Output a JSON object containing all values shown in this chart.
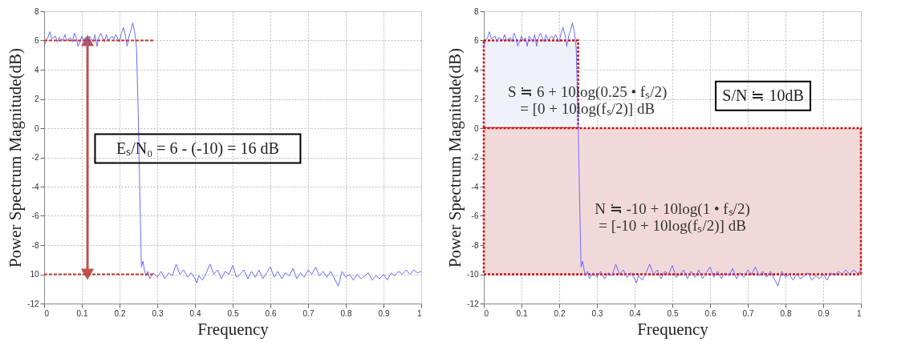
{
  "chart_data": [
    {
      "type": "line",
      "xlabel": "Frequency",
      "ylabel": "Power Spectrum Magnitude(dB)",
      "x": [
        0,
        0.005,
        0.01,
        0.015,
        0.02,
        0.03,
        0.035,
        0.04,
        0.05,
        0.055,
        0.06,
        0.07,
        0.075,
        0.08,
        0.085,
        0.09,
        0.1,
        0.105,
        0.11,
        0.115,
        0.12,
        0.13,
        0.135,
        0.14,
        0.145,
        0.15,
        0.16,
        0.165,
        0.17,
        0.18,
        0.185,
        0.19,
        0.2,
        0.205,
        0.21,
        0.215,
        0.22,
        0.225,
        0.23,
        0.235,
        0.24,
        0.245,
        0.25,
        0.255,
        0.258,
        0.262,
        0.266,
        0.27,
        0.275,
        0.28,
        0.29,
        0.3,
        0.31,
        0.32,
        0.33,
        0.34,
        0.35,
        0.36,
        0.37,
        0.38,
        0.39,
        0.4,
        0.405,
        0.41,
        0.42,
        0.43,
        0.44,
        0.45,
        0.46,
        0.47,
        0.48,
        0.49,
        0.5,
        0.51,
        0.52,
        0.53,
        0.54,
        0.55,
        0.56,
        0.57,
        0.58,
        0.59,
        0.6,
        0.61,
        0.62,
        0.63,
        0.64,
        0.65,
        0.66,
        0.67,
        0.68,
        0.69,
        0.7,
        0.71,
        0.72,
        0.73,
        0.74,
        0.75,
        0.76,
        0.77,
        0.78,
        0.79,
        0.8,
        0.81,
        0.82,
        0.83,
        0.84,
        0.85,
        0.86,
        0.87,
        0.88,
        0.89,
        0.9,
        0.91,
        0.92,
        0.93,
        0.94,
        0.95,
        0.96,
        0.97,
        0.98,
        0.99,
        1.0
      ],
      "series": [
        {
          "color": "#6b6bff",
          "values": [
            5.6,
            6.0,
            6.2,
            6.6,
            6.1,
            6.3,
            5.9,
            6.2,
            6.0,
            6.4,
            6.0,
            6.2,
            5.9,
            6.5,
            6.2,
            5.6,
            6.3,
            6.0,
            6.2,
            5.6,
            6.3,
            5.9,
            6.4,
            5.6,
            6.2,
            6.5,
            5.9,
            6.4,
            6.0,
            6.3,
            6.1,
            6.4,
            5.9,
            6.5,
            6.9,
            6.4,
            5.6,
            6.3,
            6.7,
            7.2,
            6.6,
            5.5,
            0.5,
            -6.0,
            -9.5,
            -9.1,
            -9.7,
            -10.1,
            -9.8,
            -10.3,
            -9.9,
            -10.2,
            -9.8,
            -10.3,
            -9.9,
            -10.1,
            -9.3,
            -10.0,
            -9.7,
            -10.2,
            -9.9,
            -10.3,
            -10.6,
            -10.1,
            -10.4,
            -9.9,
            -9.3,
            -10.0,
            -9.7,
            -10.3,
            -9.8,
            -10.0,
            -9.4,
            -10.2,
            -10.0,
            -9.7,
            -10.3,
            -9.8,
            -10.2,
            -9.7,
            -10.3,
            -9.9,
            -9.5,
            -10.2,
            -9.8,
            -10.3,
            -9.9,
            -10.1,
            -9.6,
            -10.3,
            -9.9,
            -10.2,
            -9.7,
            -10.0,
            -9.5,
            -10.1,
            -9.8,
            -10.2,
            -9.8,
            -10.3,
            -10.8,
            -9.8,
            -10.2,
            -10.0,
            -10.4,
            -10.0,
            -10.3,
            -10.1,
            -9.9,
            -10.4,
            -10.1,
            -10.3,
            -10.0,
            -10.4,
            -9.9,
            -10.1,
            -9.8,
            -10.0,
            -9.7,
            -10.0,
            -9.7,
            -9.9,
            -9.8
          ]
        },
        {
          "type": "line",
          "color": "#c0392b",
          "line_style": "dashed",
          "x": [
            0,
            0.29
          ],
          "values": [
            6,
            6
          ]
        },
        {
          "type": "line",
          "color": "#c0392b",
          "line_style": "dashed",
          "x": [
            0,
            0.29
          ],
          "values": [
            -10,
            -10
          ]
        }
      ],
      "xlim": [
        0,
        1
      ],
      "xticks": [
        0,
        0.1,
        0.2,
        0.3,
        0.4,
        0.5,
        0.6,
        0.7,
        0.8,
        0.9,
        1
      ],
      "ylim": [
        -12,
        8
      ],
      "yticks": [
        -12,
        {
          "value": -10,
          "label": "10"
        },
        -8,
        -6,
        -4,
        -2,
        0,
        2,
        4,
        6,
        8
      ],
      "grid": true,
      "annotations": [
        "Eₛ/N₀ = 6 - (-10) = 16 dB"
      ]
    },
    {
      "type": "line",
      "xlabel": "Frequency",
      "ylabel": "Power Spectrum Magnitude(dB)",
      "x": [
        0,
        0.005,
        0.01,
        0.015,
        0.02,
        0.03,
        0.035,
        0.04,
        0.05,
        0.055,
        0.06,
        0.07,
        0.075,
        0.08,
        0.085,
        0.09,
        0.1,
        0.105,
        0.11,
        0.115,
        0.12,
        0.13,
        0.135,
        0.14,
        0.145,
        0.15,
        0.16,
        0.165,
        0.17,
        0.18,
        0.185,
        0.19,
        0.2,
        0.205,
        0.21,
        0.215,
        0.22,
        0.225,
        0.23,
        0.235,
        0.24,
        0.245,
        0.25,
        0.255,
        0.258,
        0.262,
        0.266,
        0.27,
        0.275,
        0.28,
        0.29,
        0.3,
        0.31,
        0.32,
        0.33,
        0.34,
        0.35,
        0.36,
        0.37,
        0.38,
        0.39,
        0.4,
        0.405,
        0.41,
        0.42,
        0.43,
        0.44,
        0.45,
        0.46,
        0.47,
        0.48,
        0.49,
        0.5,
        0.51,
        0.52,
        0.53,
        0.54,
        0.55,
        0.56,
        0.57,
        0.58,
        0.59,
        0.6,
        0.61,
        0.62,
        0.63,
        0.64,
        0.65,
        0.66,
        0.67,
        0.68,
        0.69,
        0.7,
        0.71,
        0.72,
        0.73,
        0.74,
        0.75,
        0.76,
        0.77,
        0.78,
        0.79,
        0.8,
        0.81,
        0.82,
        0.83,
        0.84,
        0.85,
        0.86,
        0.87,
        0.88,
        0.89,
        0.9,
        0.91,
        0.92,
        0.93,
        0.94,
        0.95,
        0.96,
        0.97,
        0.98,
        0.99,
        1.0
      ],
      "series": [
        {
          "type": "area",
          "name": "S ≒ 6 + 10log(0.25 • fₛ/2)\n= [0 + 10log(fₛ/2)] dB",
          "color": "#eef2f8",
          "x": [
            0,
            0.25
          ],
          "values": [
            6,
            6
          ]
        },
        {
          "type": "area",
          "name": "N ≒ -10 + 10log(1 • fₛ/2)\n= [-10 + 10log(fₛ/2)] dB",
          "color": "#f2d9d9",
          "x": [
            0,
            1
          ],
          "values": [
            -10,
            -10
          ]
        },
        {
          "color": "#6b6bff",
          "values": [
            5.6,
            6.0,
            6.2,
            6.6,
            6.1,
            6.3,
            5.9,
            6.2,
            6.0,
            6.4,
            6.0,
            6.2,
            5.9,
            6.5,
            6.2,
            5.6,
            6.3,
            6.0,
            6.2,
            5.6,
            6.3,
            5.9,
            6.4,
            5.6,
            6.2,
            6.5,
            5.9,
            6.4,
            6.0,
            6.3,
            6.1,
            6.4,
            5.9,
            6.5,
            6.9,
            6.4,
            5.6,
            6.3,
            6.7,
            7.2,
            6.6,
            5.5,
            0.5,
            -6.0,
            -9.5,
            -9.1,
            -9.7,
            -10.1,
            -9.8,
            -10.3,
            -9.9,
            -10.2,
            -9.8,
            -10.3,
            -9.9,
            -10.1,
            -9.3,
            -10.0,
            -9.7,
            -10.2,
            -9.9,
            -10.3,
            -10.6,
            -10.1,
            -10.4,
            -9.9,
            -9.3,
            -10.0,
            -9.7,
            -10.3,
            -9.8,
            -10.0,
            -9.4,
            -10.2,
            -10.0,
            -9.7,
            -10.3,
            -9.8,
            -10.2,
            -9.7,
            -10.3,
            -9.9,
            -9.5,
            -10.2,
            -9.8,
            -10.3,
            -9.9,
            -10.1,
            -9.6,
            -10.3,
            -9.9,
            -10.2,
            -9.7,
            -10.0,
            -9.5,
            -10.1,
            -9.8,
            -10.2,
            -9.8,
            -10.3,
            -10.8,
            -9.8,
            -10.2,
            -10.0,
            -10.4,
            -10.0,
            -10.3,
            -10.1,
            -9.9,
            -10.4,
            -10.1,
            -10.3,
            -10.0,
            -10.4,
            -9.9,
            -10.1,
            -9.8,
            -10.0,
            -9.7,
            -10.0,
            -9.7,
            -9.9,
            -9.8
          ]
        }
      ],
      "xlim": [
        0,
        1
      ],
      "xticks": [
        0,
        0.1,
        0.2,
        0.3,
        0.4,
        0.5,
        0.6,
        0.7,
        0.8,
        0.9,
        1
      ],
      "ylim": [
        -12,
        8
      ],
      "yticks": [
        -12,
        -10,
        -8,
        -6,
        -4,
        -2,
        0,
        2,
        4,
        6,
        8
      ],
      "grid": true,
      "annotations": [
        "S/N ≒ 10dB"
      ]
    }
  ]
}
